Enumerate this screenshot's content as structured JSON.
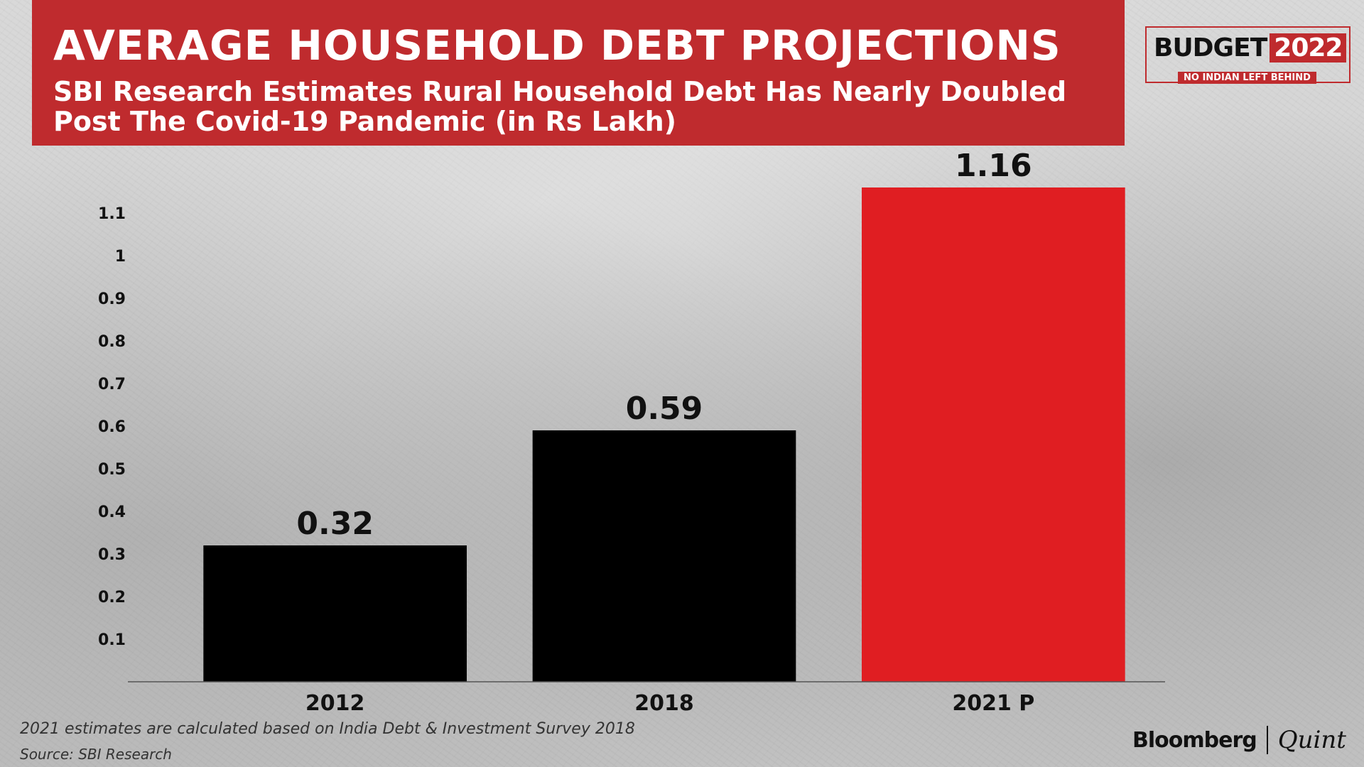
{
  "header": {
    "title": "AVERAGE HOUSEHOLD DEBT PROJECTIONS",
    "subtitle": "SBI Research Estimates Rural Household Debt Has Nearly Doubled Post The Covid-19 Pandemic (in Rs Lakh)"
  },
  "logo": {
    "text": "BUDGET",
    "year": "2022",
    "tagline": "NO INDIAN LEFT BEHIND"
  },
  "chart_data": {
    "type": "bar",
    "title": "AVERAGE HOUSEHOLD DEBT PROJECTIONS",
    "subtitle": "SBI Research Estimates Rural Household Debt Has Nearly Doubled Post The Covid-19 Pandemic (in Rs Lakh)",
    "categories": [
      "2012",
      "2018",
      "2021 P"
    ],
    "values": [
      0.32,
      0.59,
      1.16
    ],
    "value_labels": [
      "0.32",
      "0.59",
      "1.16"
    ],
    "bar_colors": [
      "#000000",
      "#000000",
      "#e01e22"
    ],
    "xlabel": "",
    "ylabel": "",
    "ylim": [
      0,
      1.2
    ],
    "yticks": [
      "0.1",
      "0.2",
      "0.3",
      "0.4",
      "0.5",
      "0.6",
      "0.7",
      "0.8",
      "0.9",
      "1",
      "1.1"
    ],
    "ytick_values": [
      0.1,
      0.2,
      0.3,
      0.4,
      0.5,
      0.6,
      0.7,
      0.8,
      0.9,
      1.0,
      1.1
    ],
    "grid": false,
    "legend": "none"
  },
  "footer": {
    "note": "2021 estimates are calculated based on India Debt & Investment Survey 2018",
    "source": "Source: SBI Research",
    "brand_left": "Bloomberg",
    "brand_right": "Quint"
  }
}
